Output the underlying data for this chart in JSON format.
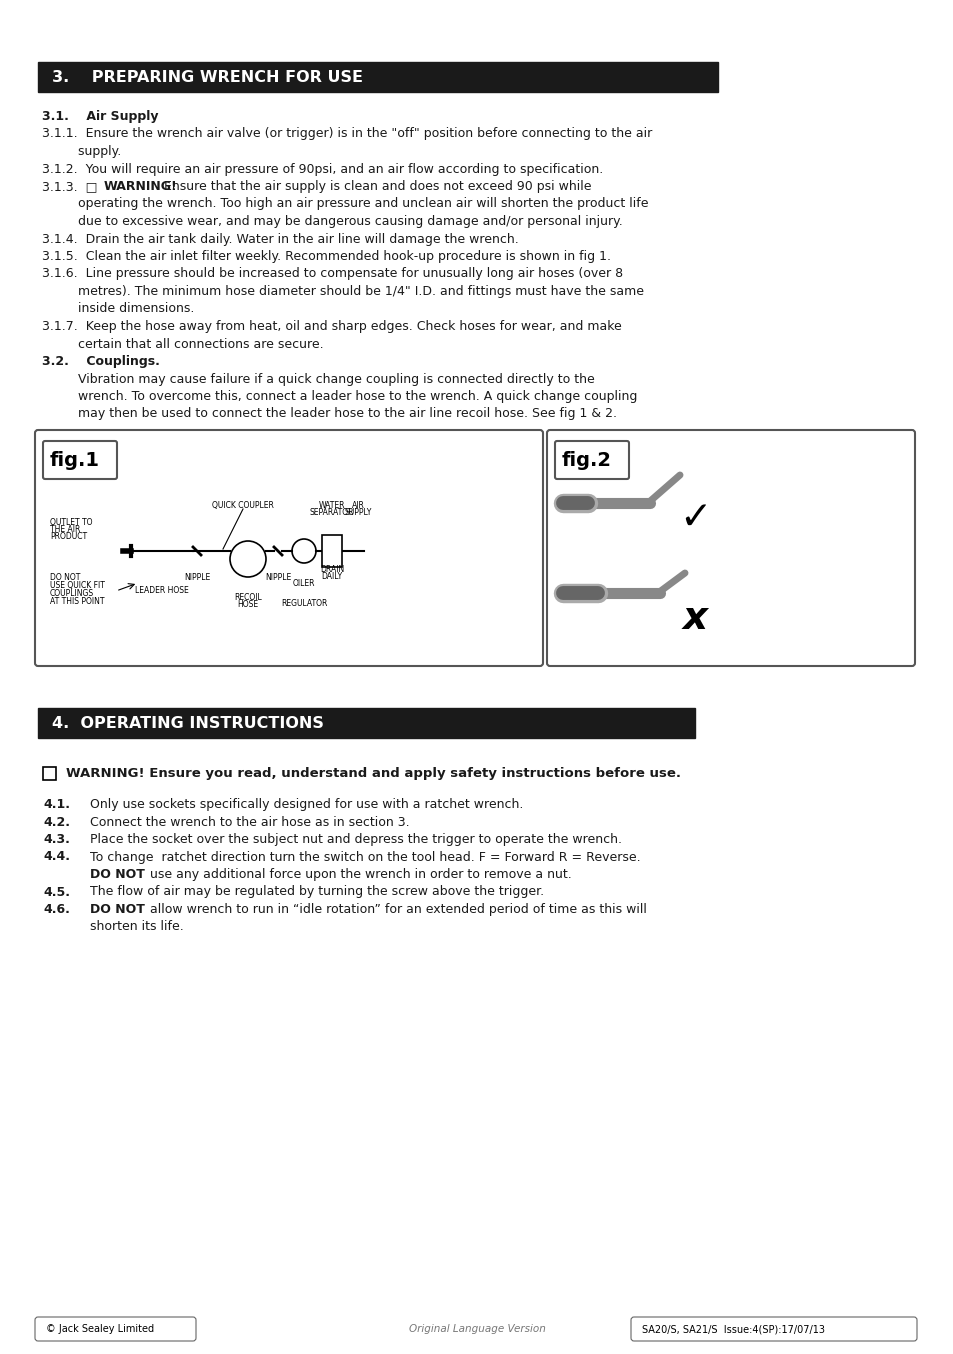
{
  "bg_color": "#ffffff",
  "text_color": "#1a1a1a",
  "header_bg": "#1a1a1a",
  "header_text_color": "#ffffff",
  "footer_left": "© Jack Sealey Limited",
  "footer_center": "Original Language Version",
  "footer_right": "SA20/S, SA21/S  Issue:4(SP):17/07/13",
  "section3_title": "3.    PREPARING WRENCH FOR USE",
  "section4_title": "4.  OPERATING INSTRUCTIONS",
  "s3_lines": [
    {
      "text": "3.1.    Air Supply",
      "type": "bold"
    },
    {
      "text": "3.1.1.  Ensure the wrench air valve (or trigger) is in the \"off\" position before connecting to the air",
      "type": "normal"
    },
    {
      "text": "         supply.",
      "type": "normal"
    },
    {
      "text": "3.1.2.  You will require an air pressure of 90psi, and an air flow according to specification.",
      "type": "normal"
    },
    {
      "text": "3.1.3.  □  WARNING!  Ensure that the air supply is clean and does not exceed 90 psi while",
      "type": "warning"
    },
    {
      "text": "         operating the wrench. Too high an air pressure and unclean air will shorten the product life",
      "type": "normal"
    },
    {
      "text": "         due to excessive wear, and may be dangerous causing damage and/or personal injury.",
      "type": "normal"
    },
    {
      "text": "3.1.4.  Drain the air tank daily. Water in the air line will damage the wrench.",
      "type": "normal"
    },
    {
      "text": "3.1.5.  Clean the air inlet filter weekly. Recommended hook-up procedure is shown in fig 1.",
      "type": "normal"
    },
    {
      "text": "3.1.6.  Line pressure should be increased to compensate for unusually long air hoses (over 8",
      "type": "normal"
    },
    {
      "text": "         metres). The minimum hose diameter should be 1/4\" I.D. and fittings must have the same",
      "type": "normal"
    },
    {
      "text": "         inside dimensions.",
      "type": "normal"
    },
    {
      "text": "3.1.7.  Keep the hose away from heat, oil and sharp edges. Check hoses for wear, and make",
      "type": "normal"
    },
    {
      "text": "         certain that all connections are secure.",
      "type": "normal"
    },
    {
      "text": "3.2.    Couplings.",
      "type": "bold"
    },
    {
      "text": "         Vibration may cause failure if a quick change coupling is connected directly to the",
      "type": "normal"
    },
    {
      "text": "         wrench. To overcome this, connect a leader hose to the wrench. A quick change coupling",
      "type": "normal"
    },
    {
      "text": "         may then be used to connect the leader hose to the air line recoil hose. See fig 1 & 2.",
      "type": "normal"
    }
  ],
  "s4_lines": [
    {
      "label": "4.1.",
      "text": "Only use sockets specifically designed for use with a ratchet wrench.",
      "type": "numbered"
    },
    {
      "label": "4.2.",
      "text": "Connect the wrench to the air hose as in section 3.",
      "type": "numbered"
    },
    {
      "label": "4.3.",
      "text": "Place the socket over the subject nut and depress the trigger to operate the wrench.",
      "type": "numbered"
    },
    {
      "label": "4.4.",
      "text": "To change  ratchet direction turn the switch on the tool head. F = Forward R = Reverse.",
      "type": "numbered"
    },
    {
      "label": "",
      "text": "DO NOT  use any additional force upon the wrench in order to remove a nut.",
      "type": "donot_indent"
    },
    {
      "label": "4.5.",
      "text": "The flow of air may be regulated by turning the screw above the trigger.",
      "type": "numbered"
    },
    {
      "label": "4.6.",
      "text": "DO NOT  allow wrench to run in “idle rotation” for an extended period of time as this will",
      "type": "numbered_donot"
    },
    {
      "label": "",
      "text": "shorten its life.",
      "type": "indent"
    }
  ]
}
